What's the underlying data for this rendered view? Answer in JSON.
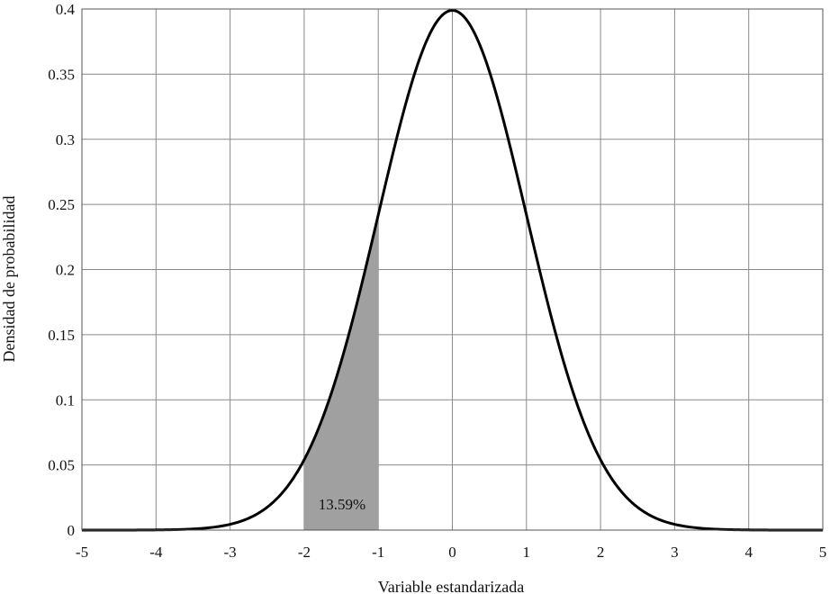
{
  "chart_data": {
    "type": "line",
    "xlabel": "Variable estandarizada",
    "ylabel": "Densidad de probabilidad",
    "xlim": [
      -5,
      5
    ],
    "ylim": [
      0,
      0.4
    ],
    "x_ticks": [
      "-5",
      "-4",
      "-3",
      "-2",
      "-1",
      "0",
      "1",
      "2",
      "3",
      "4",
      "5"
    ],
    "y_ticks": [
      "0",
      "0.05",
      "0.1",
      "0.15",
      "0.2",
      "0.25",
      "0.3",
      "0.35",
      "0.4"
    ],
    "grid": true,
    "series": [
      {
        "x": [
          -5,
          -4.5,
          -4,
          -3.5,
          -3,
          -2.5,
          -2,
          -1.5,
          -1,
          -0.5,
          0,
          0.5,
          1,
          1.5,
          2,
          2.5,
          3,
          3.5,
          4,
          4.5,
          5
        ],
        "values": [
          1.5e-06,
          1.6e-05,
          0.00013,
          0.00087,
          0.0044,
          0.0175,
          0.054,
          0.1295,
          0.242,
          0.352,
          0.399,
          0.352,
          0.242,
          0.1295,
          0.054,
          0.0175,
          0.0044,
          0.00087,
          0.00013,
          1.6e-05,
          1.5e-06
        ]
      }
    ],
    "shaded_region": {
      "x_from": -2,
      "x_to": -1,
      "label": "13.59%"
    },
    "colors": {
      "curve": "#000000",
      "shade": "#a0a0a0",
      "grid": "#8a8a8a"
    }
  }
}
